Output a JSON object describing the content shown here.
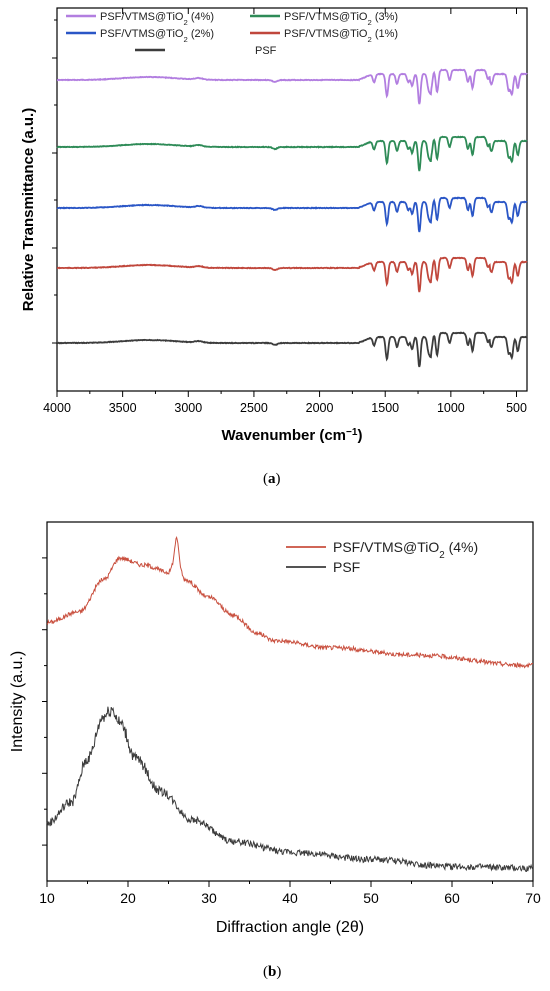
{
  "captions": {
    "a": "a",
    "b": "b"
  },
  "chart_data": [
    {
      "id": "a",
      "type": "line",
      "title": "",
      "xlabel": "Wavenumber (cm",
      "xlabel_sup": "−1",
      "xlabel_tail": ")",
      "ylabel": "Relative Transmittance (a.u.)",
      "xlim": [
        4000,
        420
      ],
      "x_reversed": true,
      "xticks": [
        4000,
        3500,
        3000,
        2500,
        2000,
        1500,
        1000,
        500
      ],
      "y_tick_labels_shown": false,
      "grid": false,
      "legend_position": "top",
      "features": {
        "baseline_hump": 3300,
        "bands": [
          1585,
          1487,
          1410,
          1325,
          1295,
          1240,
          1170,
          1150,
          1105,
          1010,
          870,
          835,
          718,
          690,
          560,
          535,
          490
        ]
      },
      "series": [
        {
          "name": "PSF/VTMS@TiO",
          "sub": "2",
          "suffix": " (4%)",
          "color": "#b27ee0",
          "offset": 4
        },
        {
          "name": "PSF/VTMS@TiO",
          "sub": "2",
          "suffix": " (3%)",
          "color": "#2e8b57",
          "offset": 3
        },
        {
          "name": "PSF/VTMS@TiO",
          "sub": "2",
          "suffix": " (2%)",
          "color": "#2a56c6",
          "offset": 2
        },
        {
          "name": "PSF/VTMS@TiO",
          "sub": "2",
          "suffix": " (1%)",
          "color": "#c0473c",
          "offset": 1
        },
        {
          "name": "PSF",
          "sub": "",
          "suffix": "",
          "color": "#3c3c3c",
          "offset": 0
        }
      ]
    },
    {
      "id": "b",
      "type": "line",
      "title": "",
      "xlabel": "Diffraction angle (2θ)",
      "ylabel": "Intensity (a.u.)",
      "xlim": [
        10,
        70
      ],
      "xticks": [
        10,
        20,
        30,
        40,
        50,
        60,
        70
      ],
      "y_tick_labels_shown": false,
      "grid": false,
      "legend_position": "top-right",
      "series": [
        {
          "name": "PSF/VTMS@TiO",
          "sub": "2",
          "suffix": " (4%)",
          "color": "#c9503f",
          "x": [
            10,
            14,
            17,
            19,
            22,
            25,
            26,
            27,
            30,
            33,
            36,
            38,
            45,
            55,
            70
          ],
          "y": [
            0.72,
            0.75,
            0.84,
            0.9,
            0.88,
            0.86,
            0.91,
            0.84,
            0.79,
            0.74,
            0.69,
            0.67,
            0.65,
            0.63,
            0.6
          ],
          "spike_at": 26
        },
        {
          "name": "PSF",
          "sub": "",
          "suffix": "",
          "color": "#3c3c3c",
          "x": [
            10,
            13,
            15,
            17,
            18,
            19,
            21,
            24,
            28,
            33,
            40,
            50,
            60,
            70
          ],
          "y": [
            0.16,
            0.22,
            0.34,
            0.46,
            0.48,
            0.44,
            0.34,
            0.25,
            0.17,
            0.11,
            0.08,
            0.06,
            0.04,
            0.035
          ]
        }
      ]
    }
  ]
}
